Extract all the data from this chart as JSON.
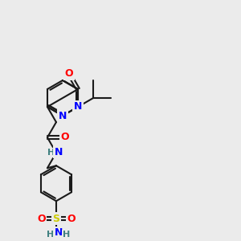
{
  "bg_color": "#ebebeb",
  "bond_color": "#1a1a1a",
  "bond_width": 1.5,
  "atom_colors": {
    "O": "#ff0000",
    "N": "#0000ff",
    "S": "#cccc00",
    "C": "#1a1a1a",
    "H": "#408080"
  },
  "font_size": 9,
  "font_size_small": 8
}
